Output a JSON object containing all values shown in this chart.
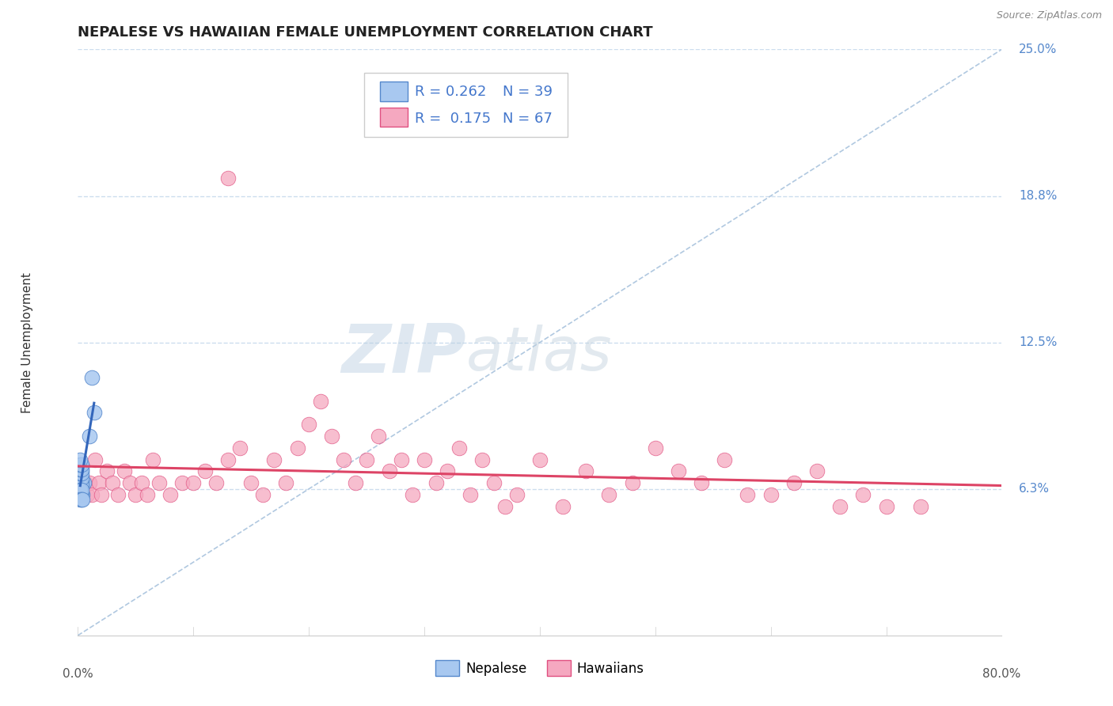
{
  "title": "NEPALESE VS HAWAIIAN FEMALE UNEMPLOYMENT CORRELATION CHART",
  "source_text": "Source: ZipAtlas.com",
  "ylabel": "Female Unemployment",
  "xlim": [
    0,
    0.8
  ],
  "ylim": [
    0,
    0.25
  ],
  "ytick_labels_right": [
    "25.0%",
    "18.8%",
    "12.5%",
    "6.3%"
  ],
  "ytick_vals_right": [
    0.25,
    0.1875,
    0.125,
    0.0625
  ],
  "nepalese_color": "#a8c8f0",
  "hawaiian_color": "#f5a8c0",
  "nepalese_edge_color": "#5588cc",
  "hawaiian_edge_color": "#e05080",
  "trend_nepalese_color": "#3366bb",
  "trend_hawaiian_color": "#dd4466",
  "diag_line_color": "#b0c8e0",
  "legend_R_color": "#4477cc",
  "legend_N_color": "#4477cc",
  "legend_R_nepalese": "0.262",
  "legend_N_nepalese": "39",
  "legend_R_hawaiian": "0.175",
  "legend_N_hawaiian": "67",
  "background_color": "#ffffff",
  "grid_color": "#ccddee",
  "title_fontsize": 13,
  "axis_label_fontsize": 11,
  "tick_fontsize": 11,
  "watermark_zip": "ZIP",
  "watermark_atlas": "atlas",
  "watermark_color_zip": "#c0d4e8",
  "watermark_color_atlas": "#c8d8e0",
  "nepalese_x": [
    0.002,
    0.003,
    0.004,
    0.002,
    0.003,
    0.004,
    0.005,
    0.002,
    0.003,
    0.002,
    0.003,
    0.002,
    0.003,
    0.002,
    0.003,
    0.002,
    0.003,
    0.004,
    0.002,
    0.003,
    0.002,
    0.003,
    0.002,
    0.003,
    0.002,
    0.003,
    0.002,
    0.003,
    0.002,
    0.003,
    0.002,
    0.003,
    0.004,
    0.002,
    0.003,
    0.002,
    0.014,
    0.012,
    0.01
  ],
  "nepalese_y": [
    0.065,
    0.065,
    0.065,
    0.07,
    0.07,
    0.065,
    0.065,
    0.068,
    0.068,
    0.063,
    0.063,
    0.072,
    0.072,
    0.066,
    0.066,
    0.06,
    0.06,
    0.06,
    0.064,
    0.064,
    0.067,
    0.067,
    0.061,
    0.061,
    0.069,
    0.069,
    0.062,
    0.062,
    0.071,
    0.071,
    0.058,
    0.058,
    0.058,
    0.073,
    0.073,
    0.075,
    0.095,
    0.11,
    0.085
  ],
  "hawaiian_x": [
    0.002,
    0.004,
    0.006,
    0.008,
    0.01,
    0.012,
    0.015,
    0.018,
    0.02,
    0.025,
    0.03,
    0.035,
    0.04,
    0.045,
    0.05,
    0.055,
    0.06,
    0.065,
    0.07,
    0.08,
    0.09,
    0.1,
    0.11,
    0.12,
    0.13,
    0.14,
    0.15,
    0.16,
    0.17,
    0.18,
    0.19,
    0.2,
    0.21,
    0.22,
    0.23,
    0.24,
    0.25,
    0.26,
    0.27,
    0.28,
    0.29,
    0.3,
    0.31,
    0.32,
    0.33,
    0.34,
    0.35,
    0.36,
    0.37,
    0.38,
    0.4,
    0.42,
    0.44,
    0.46,
    0.48,
    0.5,
    0.52,
    0.54,
    0.56,
    0.58,
    0.6,
    0.62,
    0.64,
    0.66,
    0.68,
    0.7,
    0.73
  ],
  "hawaiian_y": [
    0.065,
    0.06,
    0.065,
    0.06,
    0.065,
    0.06,
    0.075,
    0.065,
    0.06,
    0.07,
    0.065,
    0.06,
    0.07,
    0.065,
    0.06,
    0.065,
    0.06,
    0.075,
    0.065,
    0.06,
    0.065,
    0.065,
    0.07,
    0.065,
    0.075,
    0.08,
    0.065,
    0.06,
    0.075,
    0.065,
    0.08,
    0.09,
    0.1,
    0.085,
    0.075,
    0.065,
    0.075,
    0.085,
    0.07,
    0.075,
    0.06,
    0.075,
    0.065,
    0.07,
    0.08,
    0.06,
    0.075,
    0.065,
    0.055,
    0.06,
    0.075,
    0.055,
    0.07,
    0.06,
    0.065,
    0.08,
    0.07,
    0.065,
    0.075,
    0.06,
    0.06,
    0.065,
    0.07,
    0.055,
    0.06,
    0.055,
    0.055
  ],
  "hawaiian_outlier_x": [
    0.13
  ],
  "hawaiian_outlier_y": [
    0.195
  ]
}
